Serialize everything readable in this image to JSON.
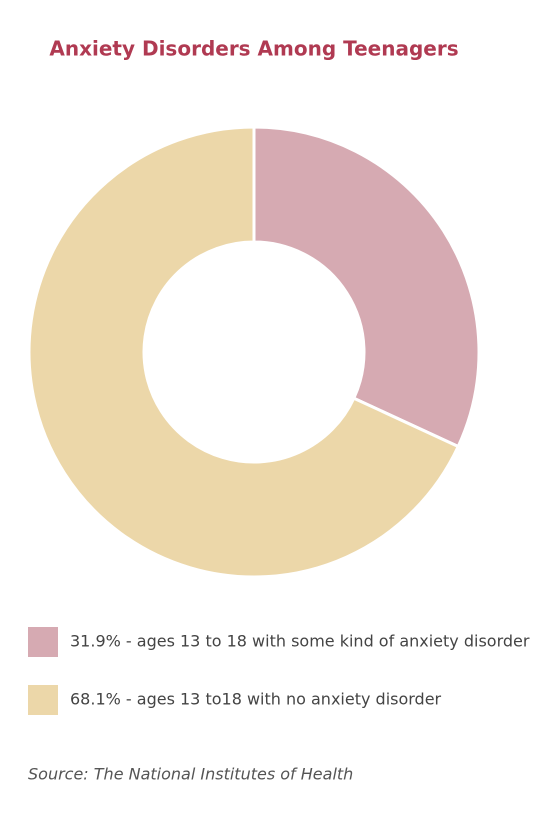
{
  "chart_data": {
    "type": "donut",
    "title": "Anxiety Disorders Among Teenagers",
    "categories": [
      "31.9% - ages 13 to 18 with some kind of anxiety disorder",
      "68.1% - ages 13 to18 with no anxiety disorder"
    ],
    "values": [
      31.9,
      68.1
    ],
    "colors": [
      "#d6aab2",
      "#ecd7a9"
    ],
    "legend": "bottom",
    "source": "Source: The National Institutes of Health"
  }
}
